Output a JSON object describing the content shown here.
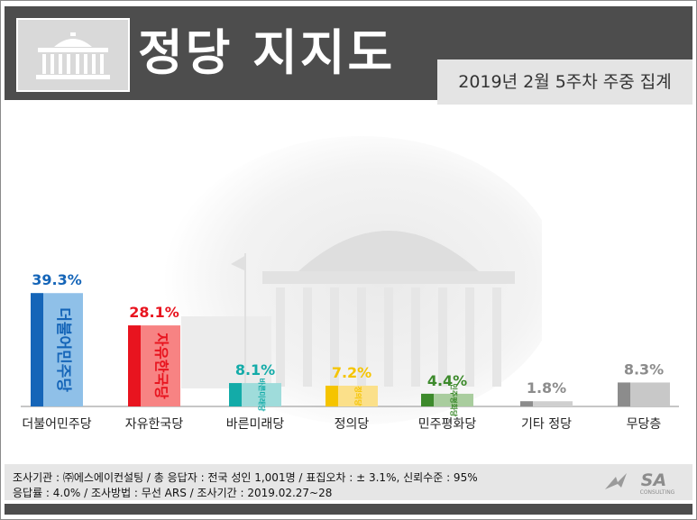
{
  "header": {
    "title": "정당 지지도",
    "subtitle": "2019년 2월 5주차 주중 집계",
    "logo_icon": "national-assembly-icon"
  },
  "chart_data": {
    "type": "bar",
    "categories": [
      "더불어민주당",
      "자유한국당",
      "바른미래당",
      "정의당",
      "민주평화당",
      "기타 정당",
      "무당층"
    ],
    "values": [
      39.3,
      28.1,
      8.1,
      7.2,
      4.4,
      1.8,
      8.3
    ],
    "value_labels": [
      "39.3%",
      "28.1%",
      "8.1%",
      "7.2%",
      "4.4%",
      "1.8%",
      "8.3%"
    ],
    "party_logos": [
      "더불어민주당",
      "자유한국당",
      "바른미래당",
      "정의당",
      "민주평화당",
      "",
      ""
    ],
    "colors": {
      "main": [
        "#1565b8",
        "#e8141f",
        "#13aba8",
        "#f5c400",
        "#3d8a2c",
        "#8c8c8c",
        "#8c8c8c"
      ],
      "light": [
        "#8fc0e8",
        "#f78383",
        "#9fdcdb",
        "#fbe08a",
        "#a9cd9e",
        "#cfcfcf",
        "#c8c8c8"
      ],
      "label": [
        "#1565b8",
        "#e8141f",
        "#13aba8",
        "#f5c400",
        "#3d8a2c",
        "#8c8c8c",
        "#8c8c8c"
      ]
    },
    "ylim": [
      0,
      45
    ],
    "grid": false,
    "legend": "none"
  },
  "footer": {
    "note1": "조사기관 : ㈜에스에이컨설팅 / 총 응답자 : 전국 성인 1,001명 / 표집오차 : ± 3.1%, 신뢰수준 : 95%",
    "note2": "응답률 : 4.0% / 조사방법 : 무선 ARS / 조사기간 : 2019.02.27~28",
    "brand": "SA",
    "brand_sub": "CONSULTING"
  }
}
